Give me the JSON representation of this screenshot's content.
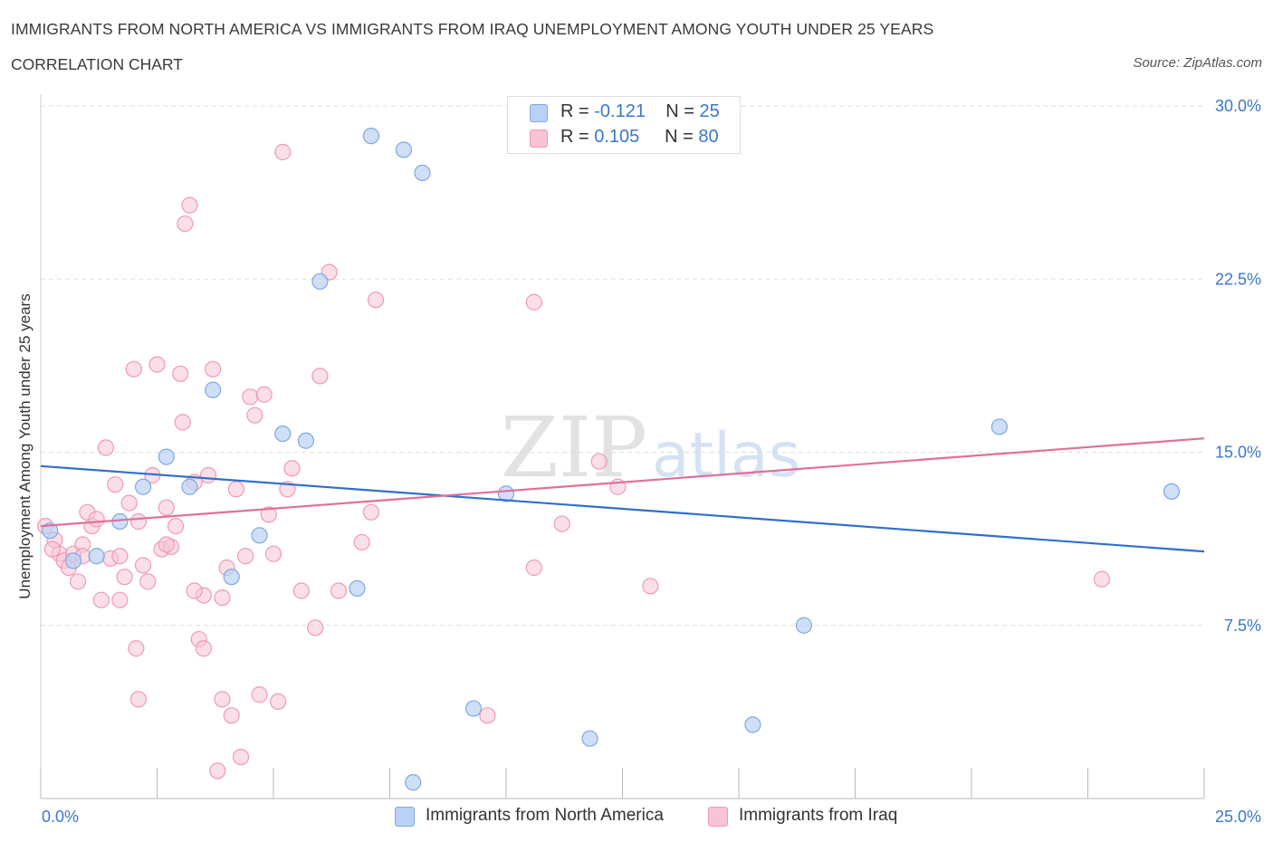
{
  "header": {
    "title": "IMMIGRANTS FROM NORTH AMERICA VS IMMIGRANTS FROM IRAQ UNEMPLOYMENT AMONG YOUTH UNDER 25 YEARS",
    "subtitle": "CORRELATION CHART",
    "source": "Source: ZipAtlas.com"
  },
  "watermark": {
    "zip": "ZIP",
    "atlas": "atlas"
  },
  "legend": {
    "r_label": "R =",
    "n_label": "N =",
    "north_america": {
      "r": "-0.121",
      "n": "25"
    },
    "iraq": {
      "r": "0.105",
      "n": "80"
    }
  },
  "colors": {
    "north_america_fill": "#b9d1f4",
    "north_america_stroke": "#7fa8e0",
    "north_america_line": "#2f6fcc",
    "iraq_fill": "#f8c4d5",
    "iraq_stroke": "#ee9ab5",
    "iraq_line": "#e0709a",
    "tick_label": "#3a78c9",
    "grid": "#dedede"
  },
  "chart_data": {
    "type": "scatter",
    "title": "IMMIGRANTS FROM NORTH AMERICA VS IMMIGRANTS FROM IRAQ UNEMPLOYMENT AMONG YOUTH UNDER 25 YEARS",
    "subtitle": "CORRELATION CHART",
    "xlabel": "",
    "ylabel": "Unemployment Among Youth under 25 years",
    "xlim": [
      0,
      25
    ],
    "ylim": [
      0,
      30
    ],
    "x_tick_labels": [
      "0.0%",
      "25.0%"
    ],
    "y_ticks": [
      7.5,
      15.0,
      22.5,
      30.0
    ],
    "y_tick_labels": [
      "7.5%",
      "15.0%",
      "22.5%",
      "30.0%"
    ],
    "grid": true,
    "legend_placement": "top-center",
    "series": [
      {
        "name": "Immigrants from North America",
        "points": [
          [
            0.2,
            11.6
          ],
          [
            0.7,
            10.3
          ],
          [
            1.2,
            10.5
          ],
          [
            1.7,
            12.0
          ],
          [
            2.2,
            13.5
          ],
          [
            2.7,
            14.8
          ],
          [
            3.2,
            13.5
          ],
          [
            3.7,
            17.7
          ],
          [
            4.1,
            9.6
          ],
          [
            4.7,
            11.4
          ],
          [
            5.2,
            15.8
          ],
          [
            5.7,
            15.5
          ],
          [
            6.0,
            22.4
          ],
          [
            6.8,
            9.1
          ],
          [
            7.1,
            28.7
          ],
          [
            7.8,
            28.1
          ],
          [
            8.2,
            27.1
          ],
          [
            8.0,
            0.7
          ],
          [
            9.3,
            3.9
          ],
          [
            10.0,
            13.2
          ],
          [
            11.8,
            2.6
          ],
          [
            15.3,
            3.2
          ],
          [
            16.4,
            7.5
          ],
          [
            20.6,
            16.1
          ],
          [
            24.3,
            13.3
          ]
        ],
        "trend": {
          "x": [
            0,
            25
          ],
          "y": [
            14.4,
            10.7
          ]
        }
      },
      {
        "name": "Immigrants from Iraq",
        "points": [
          [
            0.1,
            11.8
          ],
          [
            0.3,
            11.2
          ],
          [
            0.4,
            10.6
          ],
          [
            0.5,
            10.3
          ],
          [
            0.6,
            10.0
          ],
          [
            0.7,
            10.6
          ],
          [
            0.8,
            9.4
          ],
          [
            0.9,
            11.0
          ],
          [
            1.0,
            12.4
          ],
          [
            1.1,
            11.8
          ],
          [
            1.2,
            12.1
          ],
          [
            1.3,
            8.6
          ],
          [
            1.4,
            15.2
          ],
          [
            1.5,
            10.4
          ],
          [
            1.6,
            13.6
          ],
          [
            1.7,
            8.6
          ],
          [
            1.8,
            9.6
          ],
          [
            1.9,
            12.8
          ],
          [
            2.0,
            18.6
          ],
          [
            2.05,
            6.5
          ],
          [
            2.1,
            4.3
          ],
          [
            2.2,
            10.1
          ],
          [
            2.3,
            9.4
          ],
          [
            2.4,
            14.0
          ],
          [
            2.5,
            18.8
          ],
          [
            2.6,
            10.8
          ],
          [
            2.7,
            12.6
          ],
          [
            2.8,
            10.9
          ],
          [
            2.9,
            11.8
          ],
          [
            3.0,
            18.4
          ],
          [
            3.05,
            16.3
          ],
          [
            3.1,
            24.9
          ],
          [
            3.2,
            25.7
          ],
          [
            3.3,
            13.7
          ],
          [
            3.4,
            6.9
          ],
          [
            3.5,
            8.8
          ],
          [
            3.6,
            14.0
          ],
          [
            3.7,
            18.6
          ],
          [
            3.8,
            1.2
          ],
          [
            3.9,
            4.3
          ],
          [
            4.0,
            10.0
          ],
          [
            4.1,
            3.6
          ],
          [
            4.2,
            13.4
          ],
          [
            4.3,
            1.8
          ],
          [
            4.4,
            10.5
          ],
          [
            4.5,
            17.4
          ],
          [
            4.6,
            16.6
          ],
          [
            4.7,
            4.5
          ],
          [
            4.8,
            17.5
          ],
          [
            4.9,
            12.3
          ],
          [
            5.0,
            10.6
          ],
          [
            5.1,
            4.2
          ],
          [
            5.2,
            28.0
          ],
          [
            5.3,
            13.4
          ],
          [
            5.4,
            14.3
          ],
          [
            3.5,
            6.5
          ],
          [
            3.9,
            8.7
          ],
          [
            5.6,
            9.0
          ],
          [
            5.9,
            7.4
          ],
          [
            6.0,
            18.3
          ],
          [
            6.2,
            22.8
          ],
          [
            6.4,
            9.0
          ],
          [
            6.9,
            11.1
          ],
          [
            7.1,
            12.4
          ],
          [
            7.2,
            21.6
          ],
          [
            3.3,
            9.0
          ],
          [
            2.7,
            11.0
          ],
          [
            1.7,
            10.5
          ],
          [
            0.9,
            10.5
          ],
          [
            9.6,
            3.6
          ],
          [
            10.3,
            29.7
          ],
          [
            10.6,
            21.5
          ],
          [
            10.6,
            10.0
          ],
          [
            11.2,
            11.9
          ],
          [
            12.0,
            14.6
          ],
          [
            12.4,
            13.5
          ],
          [
            13.1,
            9.2
          ],
          [
            22.8,
            9.5
          ],
          [
            0.25,
            10.8
          ],
          [
            2.1,
            12.0
          ]
        ],
        "trend": {
          "x": [
            0,
            25
          ],
          "y": [
            11.8,
            15.6
          ]
        }
      }
    ]
  },
  "bottom_legend": {
    "north_america": "Immigrants from North America",
    "iraq": "Immigrants from Iraq"
  }
}
